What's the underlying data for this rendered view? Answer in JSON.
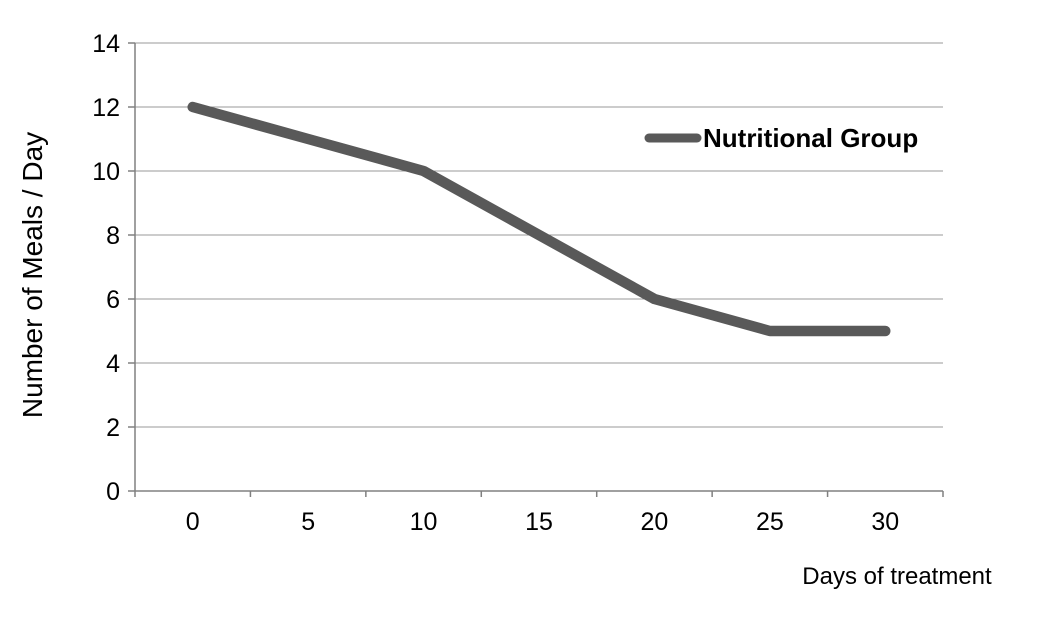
{
  "chart_data": {
    "type": "line",
    "title": "",
    "xlabel": "Days of treatment",
    "ylabel": "Number of Meals / Day",
    "categories": [
      "0",
      "5",
      "10",
      "15",
      "20",
      "25",
      "30"
    ],
    "series": [
      {
        "name": "Nutritional Group",
        "values": [
          12,
          11,
          10,
          8,
          6,
          5,
          5
        ],
        "color": "#595959",
        "stroke_width": 10.5
      }
    ],
    "x": [
      0,
      5,
      10,
      15,
      20,
      25,
      30
    ],
    "ylim": [
      0,
      14
    ],
    "ytick_step": 2,
    "yticks": [
      0,
      2,
      4,
      6,
      8,
      10,
      12,
      14
    ],
    "grid": "horizontal",
    "legend_position": "inside-top-right",
    "colors": {
      "axis": "#808080",
      "gridline": "#9A9A9A",
      "text": "#000000",
      "background": "#FFFFFF"
    }
  }
}
